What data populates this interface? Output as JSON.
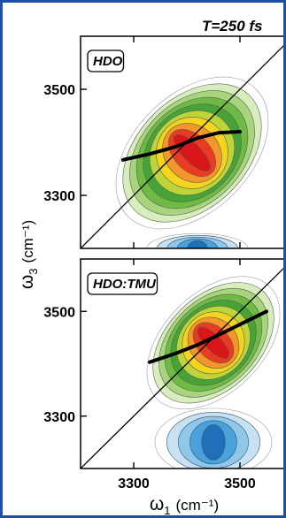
{
  "header": {
    "label": "T=250 fs"
  },
  "axes": {
    "ylabel_symbol": "ω",
    "ylabel_sub": "3",
    "ylabel_unit": "(cm⁻¹)",
    "xlabel_symbol": "ω",
    "xlabel_sub": "1",
    "xlabel_unit": "(cm⁻¹)"
  },
  "colors": {
    "frame": "#1f4fa8",
    "contour_levels_positive": [
      "#ffffff",
      "#d7edbd",
      "#a7d47c",
      "#6fba45",
      "#48a336",
      "#bfd43a",
      "#f4d41c",
      "#f4962a",
      "#eb3a22",
      "#d9161a"
    ],
    "contour_levels_negative": [
      "#ffffff",
      "#c7e1f3",
      "#8fc6ea",
      "#4aa2db",
      "#1f6fb9"
    ]
  },
  "chart_data": [
    {
      "type": "heatmap",
      "panel_label": "HDO",
      "xlim": [
        3200,
        3600
      ],
      "ylim": [
        3200,
        3600
      ],
      "x_ticks": [
        3300,
        3500
      ],
      "y_ticks": [
        3300,
        3500
      ],
      "diagonal": true,
      "positive_peak": {
        "x": 3410,
        "y": 3380
      },
      "negative_peak": {
        "x": 3420,
        "y": 3200
      },
      "center_line": {
        "x": [
          3280,
          3330,
          3380,
          3420,
          3460,
          3500
        ],
        "y": [
          3367,
          3378,
          3392,
          3408,
          3418,
          3420
        ]
      }
    },
    {
      "type": "heatmap",
      "panel_label": "HDO:TMU",
      "xlim": [
        3200,
        3600
      ],
      "ylim": [
        3200,
        3600
      ],
      "x_ticks": [
        3300,
        3500
      ],
      "y_ticks": [
        3300,
        3500
      ],
      "x_tick_labels": [
        "3300",
        "3500"
      ],
      "diagonal": true,
      "positive_peak": {
        "x": 3450,
        "y": 3440
      },
      "negative_peak": {
        "x": 3450,
        "y": 3250
      },
      "center_line": {
        "x": [
          3330,
          3380,
          3420,
          3460,
          3500,
          3550
        ],
        "y": [
          3403,
          3420,
          3436,
          3455,
          3475,
          3500
        ]
      }
    }
  ]
}
